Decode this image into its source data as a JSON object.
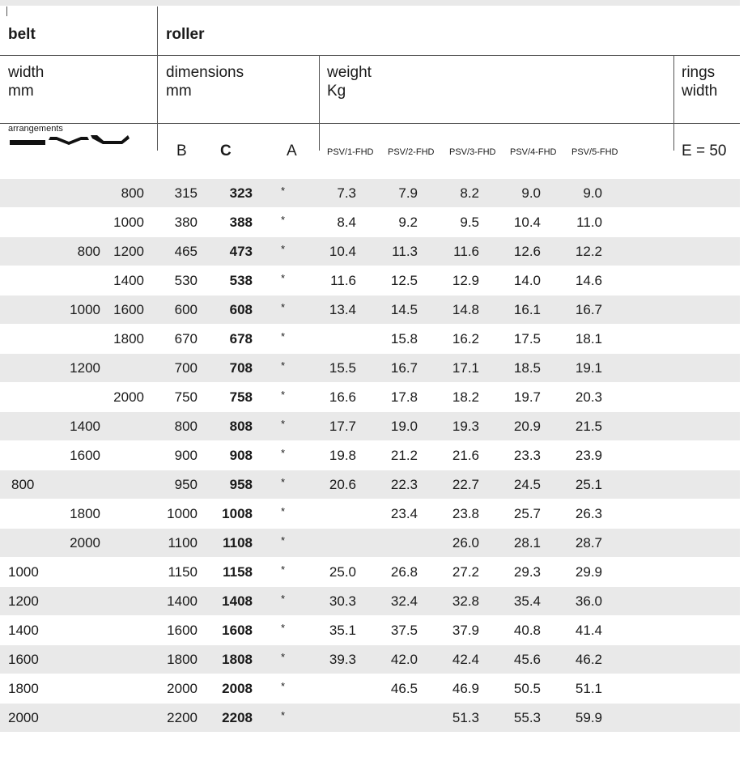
{
  "header": {
    "belt_title": "belt",
    "roller_title": "roller",
    "width_label": "width",
    "width_unit": "mm",
    "dimensions_label": "dimensions",
    "dimensions_unit": "mm",
    "weight_label": "weight",
    "weight_unit": "Kg",
    "rings_label": "rings",
    "rings_sub": "width",
    "arrangements_label": "arrangements",
    "col_b": "B",
    "col_c": "C",
    "col_a": "A",
    "psv1": "PSV/1-FHD",
    "psv2": "PSV/2-FHD",
    "psv3": "PSV/3-FHD",
    "psv4": "PSV/4-FHD",
    "psv5": "PSV/5-FHD",
    "rings_value": "E = 50"
  },
  "rows": [
    {
      "w1": "",
      "w2": "",
      "w3": "800",
      "B": "315",
      "C": "323",
      "A": "*",
      "p1": "7.3",
      "p2": "7.9",
      "p3": "8.2",
      "p4": "9.0",
      "p5": "9.0"
    },
    {
      "w1": "",
      "w2": "",
      "w3": "1000",
      "B": "380",
      "C": "388",
      "A": "*",
      "p1": "8.4",
      "p2": "9.2",
      "p3": "9.5",
      "p4": "10.4",
      "p5": "11.0"
    },
    {
      "w1": "",
      "w2": "800",
      "w3": "1200",
      "B": "465",
      "C": "473",
      "A": "*",
      "p1": "10.4",
      "p2": "11.3",
      "p3": "11.6",
      "p4": "12.6",
      "p5": "12.2"
    },
    {
      "w1": "",
      "w2": "",
      "w3": "1400",
      "B": "530",
      "C": "538",
      "A": "*",
      "p1": "11.6",
      "p2": "12.5",
      "p3": "12.9",
      "p4": "14.0",
      "p5": "14.6"
    },
    {
      "w1": "",
      "w2": "1000",
      "w3": "1600",
      "B": "600",
      "C": "608",
      "A": "*",
      "p1": "13.4",
      "p2": "14.5",
      "p3": "14.8",
      "p4": "16.1",
      "p5": "16.7"
    },
    {
      "w1": "",
      "w2": "",
      "w3": "1800",
      "B": "670",
      "C": "678",
      "A": "*",
      "p1": "",
      "p2": "15.8",
      "p3": "16.2",
      "p4": "17.5",
      "p5": "18.1"
    },
    {
      "w1": "",
      "w2": "1200",
      "w3": "",
      "B": "700",
      "C": "708",
      "A": "*",
      "p1": "15.5",
      "p2": "16.7",
      "p3": "17.1",
      "p4": "18.5",
      "p5": "19.1"
    },
    {
      "w1": "",
      "w2": "",
      "w3": "2000",
      "B": "750",
      "C": "758",
      "A": "*",
      "p1": "16.6",
      "p2": "17.8",
      "p3": "18.2",
      "p4": "19.7",
      "p5": "20.3"
    },
    {
      "w1": "",
      "w2": "1400",
      "w3": "",
      "B": "800",
      "C": "808",
      "A": "*",
      "p1": "17.7",
      "p2": "19.0",
      "p3": "19.3",
      "p4": "20.9",
      "p5": "21.5"
    },
    {
      "w1": "",
      "w2": "1600",
      "w3": "",
      "B": "900",
      "C": "908",
      "A": "*",
      "p1": "19.8",
      "p2": "21.2",
      "p3": "21.6",
      "p4": "23.3",
      "p5": "23.9"
    },
    {
      "w1": "",
      "w2": "800",
      "w3": "",
      "B": "950",
      "C": "958",
      "A": "*",
      "p1": "20.6",
      "p2": "22.3",
      "p3": "22.7",
      "p4": "24.5",
      "p5": "25.1"
    },
    {
      "w1": "",
      "w2": "1800",
      "w3": "",
      "B": "1000",
      "C": "1008",
      "A": "*",
      "p1": "",
      "p2": "23.4",
      "p3": "23.8",
      "p4": "25.7",
      "p5": "26.3"
    },
    {
      "w1": "",
      "w2": "2000",
      "w3": "",
      "B": "1100",
      "C": "1108",
      "A": "*",
      "p1": "",
      "p2": "",
      "p3": "26.0",
      "p4": "28.1",
      "p5": "28.7"
    },
    {
      "w1": "1000",
      "w2": "",
      "w3": "",
      "B": "1150",
      "C": "1158",
      "A": "*",
      "p1": "25.0",
      "p2": "26.8",
      "p3": "27.2",
      "p4": "29.3",
      "p5": "29.9"
    },
    {
      "w1": "1200",
      "w2": "",
      "w3": "",
      "B": "1400",
      "C": "1408",
      "A": "*",
      "p1": "30.3",
      "p2": "32.4",
      "p3": "32.8",
      "p4": "35.4",
      "p5": "36.0"
    },
    {
      "w1": "1400",
      "w2": "",
      "w3": "",
      "B": "1600",
      "C": "1608",
      "A": "*",
      "p1": "35.1",
      "p2": "37.5",
      "p3": "37.9",
      "p4": "40.8",
      "p5": "41.4"
    },
    {
      "w1": "1600",
      "w2": "",
      "w3": "",
      "B": "1800",
      "C": "1808",
      "A": "*",
      "p1": "39.3",
      "p2": "42.0",
      "p3": "42.4",
      "p4": "45.6",
      "p5": "46.2"
    },
    {
      "w1": "1800",
      "w2": "",
      "w3": "",
      "B": "2000",
      "C": "2008",
      "A": "*",
      "p1": "",
      "p2": "46.5",
      "p3": "46.9",
      "p4": "50.5",
      "p5": "51.1"
    },
    {
      "w1": "2000",
      "w2": "",
      "w3": "",
      "B": "2200",
      "C": "2208",
      "A": "*",
      "p1": "",
      "p2": "",
      "p3": "51.3",
      "p4": "55.3",
      "p5": "59.9"
    }
  ],
  "row_shading": [
    true,
    false,
    true,
    false,
    true,
    false,
    true,
    false,
    true,
    false,
    true,
    false,
    true,
    false,
    true,
    false,
    true,
    false,
    true
  ],
  "row_w2_left": [
    false,
    false,
    false,
    false,
    false,
    false,
    false,
    false,
    false,
    false,
    true,
    false,
    false,
    false,
    false,
    false,
    false,
    false,
    false
  ]
}
